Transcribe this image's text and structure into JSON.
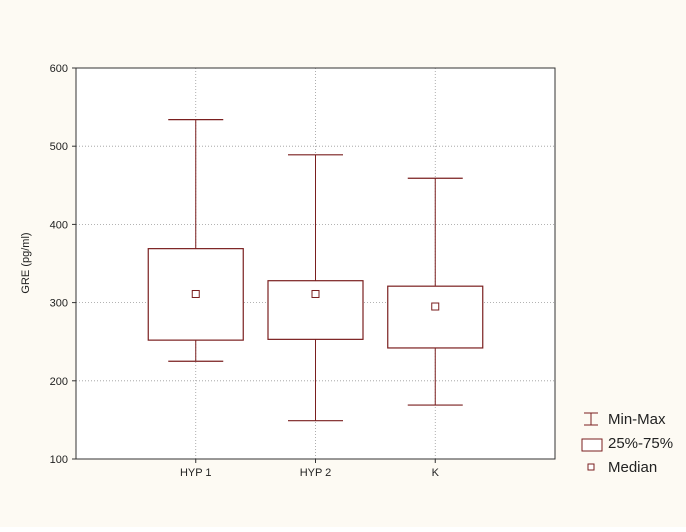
{
  "chart_data": {
    "type": "box",
    "title": "",
    "xlabel": "",
    "ylabel": "GRE (pg/ml)",
    "ylim": [
      100,
      600
    ],
    "yticks": [
      100,
      200,
      300,
      400,
      500,
      600
    ],
    "grid": true,
    "legend_position": "right",
    "categories": [
      "HYP 1",
      "HYP 2",
      "K"
    ],
    "boxes": [
      {
        "category": "HYP 1",
        "min": 225,
        "q1": 252,
        "median": 311,
        "q3": 369,
        "max": 534
      },
      {
        "category": "HYP 2",
        "min": 149,
        "q1": 253,
        "median": 311,
        "q3": 328,
        "max": 489
      },
      {
        "category": "K",
        "min": 169,
        "q1": 242,
        "median": 295,
        "q3": 321,
        "max": 459
      }
    ],
    "legend": [
      {
        "key": "minmax",
        "label": "Min-Max"
      },
      {
        "key": "iqr",
        "label": "25%-75%"
      },
      {
        "key": "median",
        "label": "Median"
      }
    ],
    "colors": {
      "outer_background": "#fdfaf3",
      "plot_background": "#ffffff",
      "box_stroke": "#7a1f1f",
      "axis": "#333333",
      "grid": "#9a9a9a",
      "text": "#222222"
    }
  }
}
